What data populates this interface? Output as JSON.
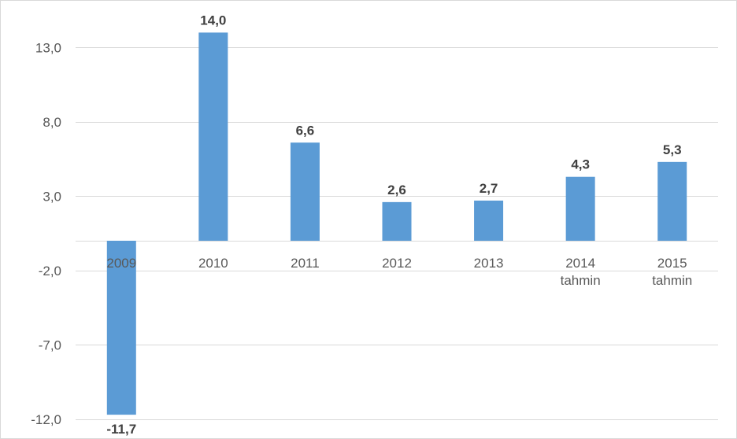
{
  "chart_data": {
    "type": "bar",
    "categories": [
      "2009",
      "2010",
      "2011",
      "2012",
      "2013",
      "2014\ntahmin",
      "2015\ntahmin"
    ],
    "values": [
      -11.7,
      14.0,
      6.6,
      2.6,
      2.7,
      4.3,
      5.3
    ],
    "data_labels": [
      "-11,7",
      "14,0",
      "6,6",
      "2,6",
      "2,7",
      "4,3",
      "5,3"
    ],
    "yticks": [
      13.0,
      8.0,
      3.0,
      -2.0,
      -7.0,
      -12.0
    ],
    "ytick_labels": [
      "13,0",
      "8,0",
      "3,0",
      "-2,0",
      "-7,0",
      "-12,0"
    ],
    "ylim": [
      -12.0,
      15.0
    ],
    "grid": true,
    "bar_color": "#5b9bd5",
    "title": "",
    "xlabel": "",
    "ylabel": ""
  }
}
